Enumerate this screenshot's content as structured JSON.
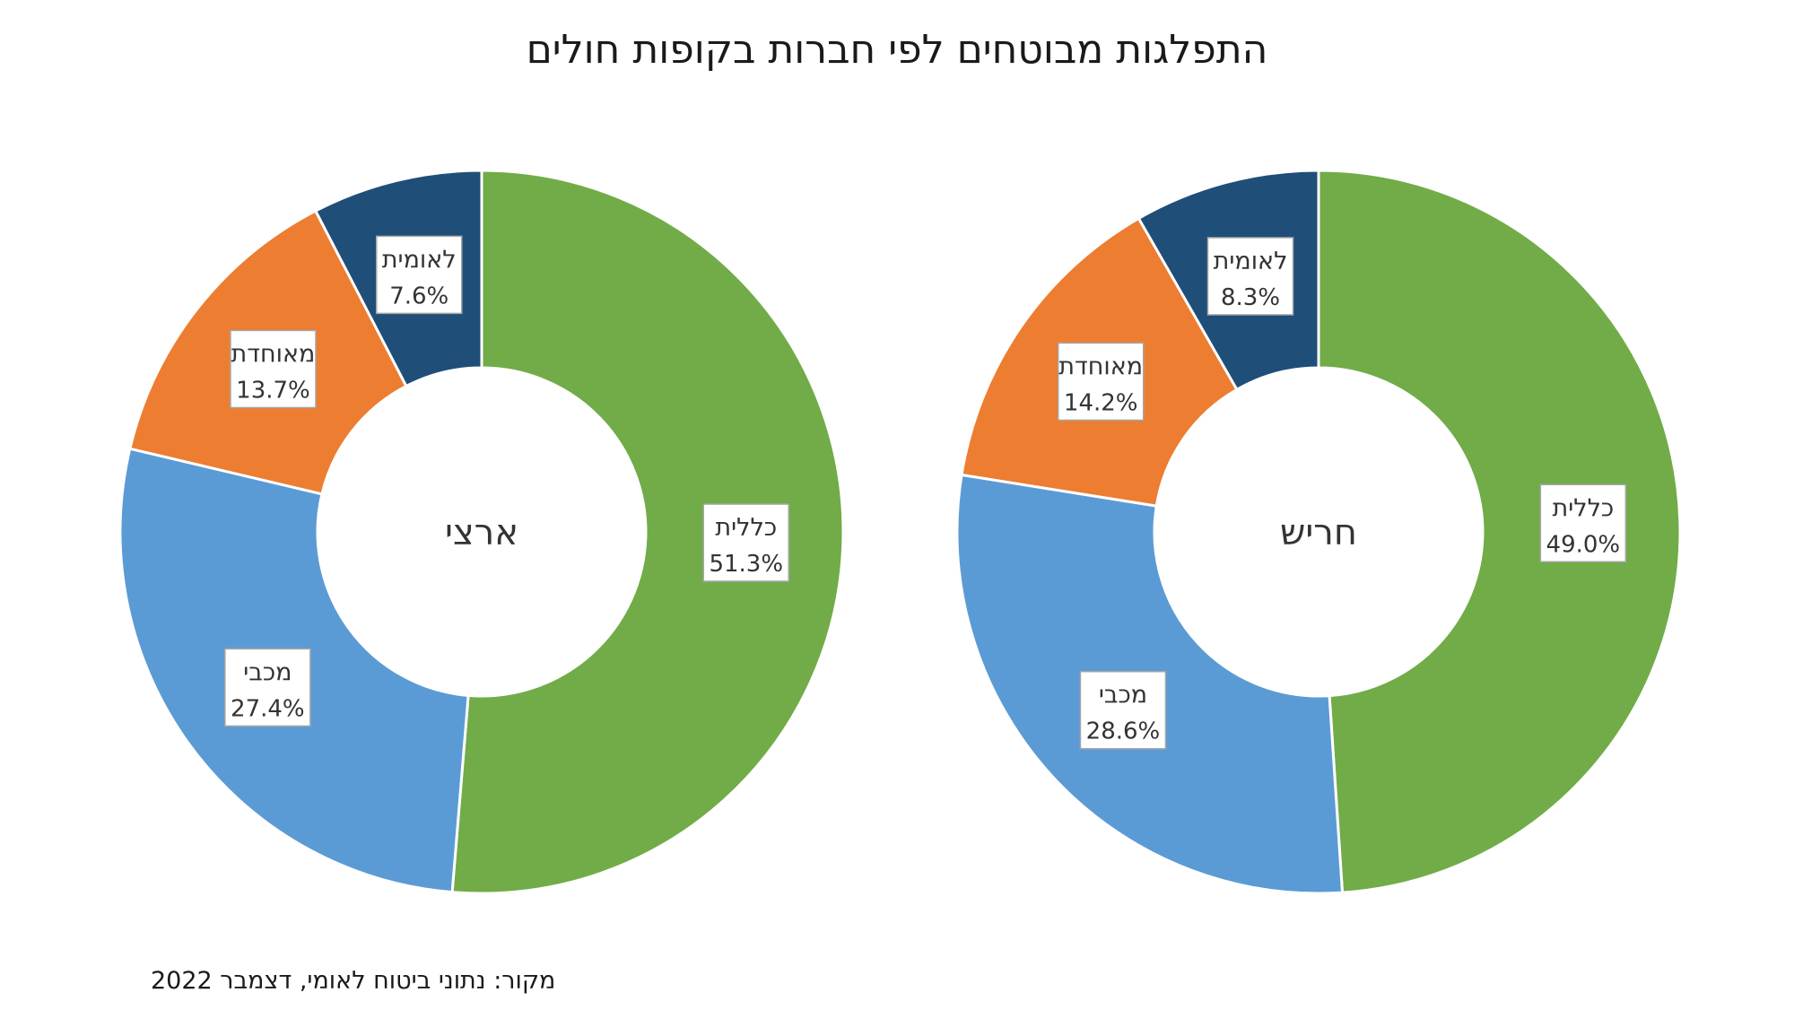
{
  "title": "התפלגות מבוטחים לפי חברות בקופות חולים",
  "source": "מקור: נתוני ביטוח לאומי, דצמבר 2022",
  "colors": {
    "כללית": "#71AC48",
    "מכבי": "#5B9BD5",
    "מאוחדת": "#ED7D31",
    "לאומית": "#1F4E79"
  },
  "chart_data": [
    {
      "type": "pie",
      "center_label": "ארצי",
      "categories": [
        "כללית",
        "מכבי",
        "מאוחדת",
        "לאומית"
      ],
      "values": [
        51.3,
        27.4,
        13.7,
        7.6
      ],
      "value_labels": [
        "51.3%",
        "27.4%",
        "13.7%",
        "7.6%"
      ]
    },
    {
      "type": "pie",
      "center_label": "חריש",
      "categories": [
        "כללית",
        "מכבי",
        "מאוחדת",
        "לאומית"
      ],
      "values": [
        49.0,
        28.6,
        14.2,
        8.3
      ],
      "value_labels": [
        "49.0%",
        "28.6%",
        "14.2%",
        "8.3%"
      ]
    }
  ]
}
